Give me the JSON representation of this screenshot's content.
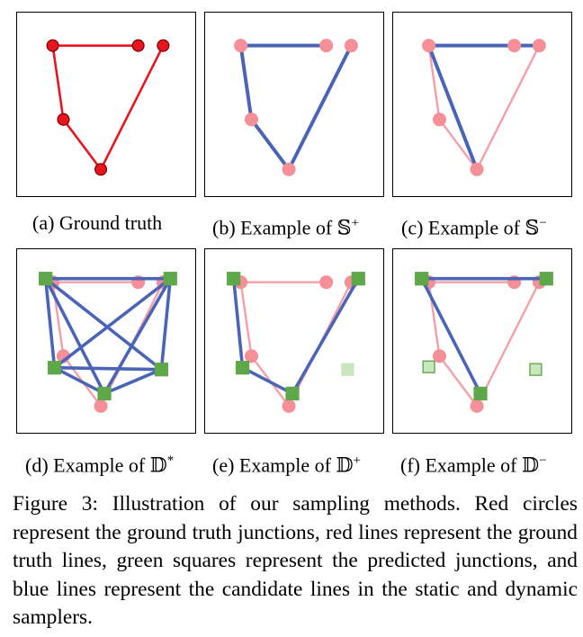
{
  "panels": [
    {
      "letter": "(a)",
      "caption": "(a) Ground truth"
    },
    {
      "letter": "(b)",
      "caption_prefix": "(b) Example of ",
      "symbol": "𝕊",
      "sup": "+"
    },
    {
      "letter": "(c)",
      "caption_prefix": "(c) Example of ",
      "symbol": "𝕊",
      "sup": "−"
    },
    {
      "letter": "(d)",
      "caption_prefix": "(d) Example of ",
      "symbol": "𝔻",
      "sup": "*"
    },
    {
      "letter": "(e)",
      "caption_prefix": "(e) Example of ",
      "symbol": "𝔻",
      "sup": "+"
    },
    {
      "letter": "(f)",
      "caption_prefix": "(f) Example of ",
      "symbol": "𝔻",
      "sup": "−"
    }
  ],
  "figure_caption": "Figure 3: Illustration of our sampling methods. Red circles represent the ground truth junctions, red lines represent the ground truth lines, green squares represent the predicted junctions, and blue lines represent the candidate lines in the static and dynamic samplers.",
  "colors": {
    "gt_red": "#e8141e",
    "gt_dark": "#7a0000",
    "pink": "#f4a0a6",
    "pink_circle": "#f58f98",
    "blue": "#4a64b8",
    "green": "#5fa84a",
    "green_light": "#c9e6bf"
  }
}
